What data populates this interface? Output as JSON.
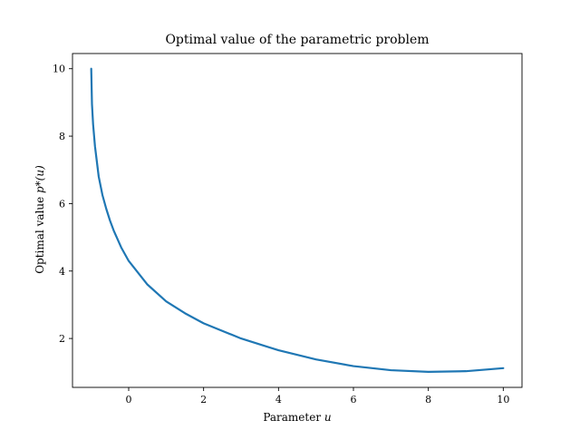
{
  "chart_data": {
    "type": "line",
    "title": "Optimal value of the parametric problem",
    "xlabel": "Parameter",
    "xlabel_var": "u",
    "ylabel": "Optimal value",
    "ylabel_var": "p*(u)",
    "xlim": [
      -1.5,
      10.5
    ],
    "ylim": [
      0.55,
      10.45
    ],
    "grid": false,
    "legend": "none",
    "x_ticks": [
      0,
      2,
      4,
      6,
      8,
      10
    ],
    "x_tick_labels": [
      "0",
      "2",
      "4",
      "6",
      "8",
      "10"
    ],
    "y_ticks": [
      2,
      4,
      6,
      8,
      10
    ],
    "y_tick_labels": [
      "2",
      "4",
      "6",
      "8",
      "10"
    ],
    "series": [
      {
        "color": "#1f77b4",
        "x": [
          -1.0,
          -0.98,
          -0.95,
          -0.9,
          -0.8,
          -0.7,
          -0.6,
          -0.5,
          -0.4,
          -0.2,
          0,
          0.5,
          1,
          1.5,
          2,
          3,
          4,
          5,
          6,
          7,
          8,
          9,
          10
        ],
        "y": [
          10.0,
          8.95,
          8.35,
          7.7,
          6.8,
          6.25,
          5.85,
          5.5,
          5.2,
          4.7,
          4.3,
          3.6,
          3.1,
          2.75,
          2.45,
          2.0,
          1.65,
          1.38,
          1.18,
          1.06,
          1.01,
          1.03,
          1.12
        ]
      }
    ]
  }
}
